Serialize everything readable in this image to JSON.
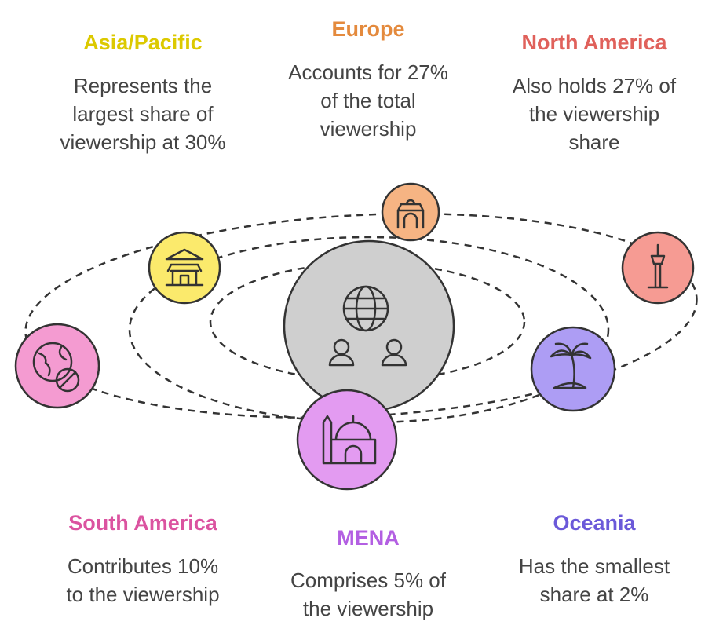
{
  "regions": [
    {
      "name": "Asia/Pacific",
      "lines": [
        "Represents the",
        "largest share of",
        "viewership at 30%"
      ]
    },
    {
      "name": "Europe",
      "lines": [
        "Accounts for 27%",
        "of the total",
        "viewership"
      ]
    },
    {
      "name": "North America",
      "lines": [
        "Also holds 27% of",
        "the viewership",
        "share"
      ]
    },
    {
      "name": "South America",
      "lines": [
        "Contributes 10%",
        "to the viewership"
      ]
    },
    {
      "name": "MENA",
      "lines": [
        "Comprises 5% of",
        "the viewership"
      ]
    },
    {
      "name": "Oceania",
      "lines": [
        "Has the smallest",
        "share at 2%"
      ]
    }
  ]
}
